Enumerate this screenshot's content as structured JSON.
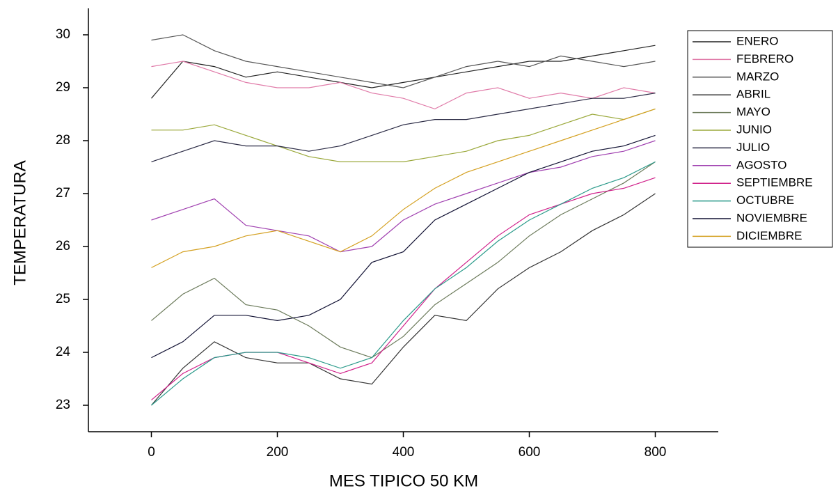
{
  "chart_data": {
    "type": "line",
    "x_label": "MES TIPICO 50 KM",
    "y_label": "TEMPERATURA",
    "x": [
      0,
      50,
      100,
      150,
      200,
      250,
      300,
      350,
      400,
      450,
      500,
      550,
      600,
      650,
      700,
      750,
      800
    ],
    "xlim": [
      -100,
      900
    ],
    "xticks": [
      0,
      200,
      400,
      600,
      800
    ],
    "ylim": [
      22.5,
      30.5
    ],
    "yticks": [
      23,
      24,
      25,
      26,
      27,
      28,
      29,
      30
    ],
    "series": [
      {
        "name": "ENERO",
        "color": "#222222",
        "values": [
          28.8,
          29.5,
          29.4,
          29.2,
          29.3,
          29.2,
          29.1,
          29.0,
          29.1,
          29.2,
          29.3,
          29.4,
          29.5,
          29.5,
          29.6,
          29.7,
          29.8
        ]
      },
      {
        "name": "FEBRERO",
        "color": "#e07aa8",
        "values": [
          29.4,
          29.5,
          29.3,
          29.1,
          29.0,
          29.0,
          29.1,
          28.9,
          28.8,
          28.6,
          28.9,
          29.0,
          28.8,
          28.9,
          28.8,
          29.0,
          28.9
        ]
      },
      {
        "name": "MARZO",
        "color": "#555555",
        "values": [
          29.9,
          30.0,
          29.7,
          29.5,
          29.4,
          29.3,
          29.2,
          29.1,
          29.0,
          29.2,
          29.4,
          29.5,
          29.4,
          29.6,
          29.5,
          29.4,
          29.5
        ]
      },
      {
        "name": "ABRIL",
        "color": "#333333",
        "values": [
          23.0,
          23.7,
          24.2,
          23.9,
          23.8,
          23.8,
          23.5,
          23.4,
          24.1,
          24.7,
          24.6,
          25.2,
          25.6,
          25.9,
          26.3,
          26.6,
          27.0
        ]
      },
      {
        "name": "MAYO",
        "color": "#6b7a5a",
        "values": [
          24.6,
          25.1,
          25.4,
          24.9,
          24.8,
          24.5,
          24.1,
          23.9,
          24.3,
          24.9,
          25.3,
          25.7,
          26.2,
          26.6,
          26.9,
          27.2,
          27.6
        ]
      },
      {
        "name": "JUNIO",
        "color": "#9aa83a",
        "values": [
          28.2,
          28.2,
          28.3,
          28.1,
          27.9,
          27.7,
          27.6,
          27.6,
          27.6,
          27.7,
          27.8,
          28.0,
          28.1,
          28.3,
          28.5,
          28.4,
          28.6
        ]
      },
      {
        "name": "JULIO",
        "color": "#2a2a44",
        "values": [
          27.6,
          27.8,
          28.0,
          27.9,
          27.9,
          27.8,
          27.9,
          28.1,
          28.3,
          28.4,
          28.4,
          28.5,
          28.6,
          28.7,
          28.8,
          28.8,
          28.9
        ]
      },
      {
        "name": "AGOSTO",
        "color": "#a040b0",
        "values": [
          26.5,
          26.7,
          26.9,
          26.4,
          26.3,
          26.2,
          25.9,
          26.0,
          26.5,
          26.8,
          27.0,
          27.2,
          27.4,
          27.5,
          27.7,
          27.8,
          28.0
        ]
      },
      {
        "name": "SEPTIEMBRE",
        "color": "#d0208a",
        "values": [
          23.1,
          23.6,
          23.9,
          24.0,
          24.0,
          23.8,
          23.6,
          23.8,
          24.5,
          25.2,
          25.7,
          26.2,
          26.6,
          26.8,
          27.0,
          27.1,
          27.3
        ]
      },
      {
        "name": "OCTUBRE",
        "color": "#2a9a8a",
        "values": [
          23.0,
          23.5,
          23.9,
          24.0,
          24.0,
          23.9,
          23.7,
          23.9,
          24.6,
          25.2,
          25.6,
          26.1,
          26.5,
          26.8,
          27.1,
          27.3,
          27.6
        ]
      },
      {
        "name": "NOVIEMBRE",
        "color": "#111133",
        "values": [
          23.9,
          24.2,
          24.7,
          24.7,
          24.6,
          24.7,
          25.0,
          25.7,
          25.9,
          26.5,
          26.8,
          27.1,
          27.4,
          27.6,
          27.8,
          27.9,
          28.1
        ]
      },
      {
        "name": "DICIEMBRE",
        "color": "#d4a020",
        "values": [
          25.6,
          25.9,
          26.0,
          26.2,
          26.3,
          26.1,
          25.9,
          26.2,
          26.7,
          27.1,
          27.4,
          27.6,
          27.8,
          28.0,
          28.2,
          28.4,
          28.6
        ]
      }
    ]
  }
}
